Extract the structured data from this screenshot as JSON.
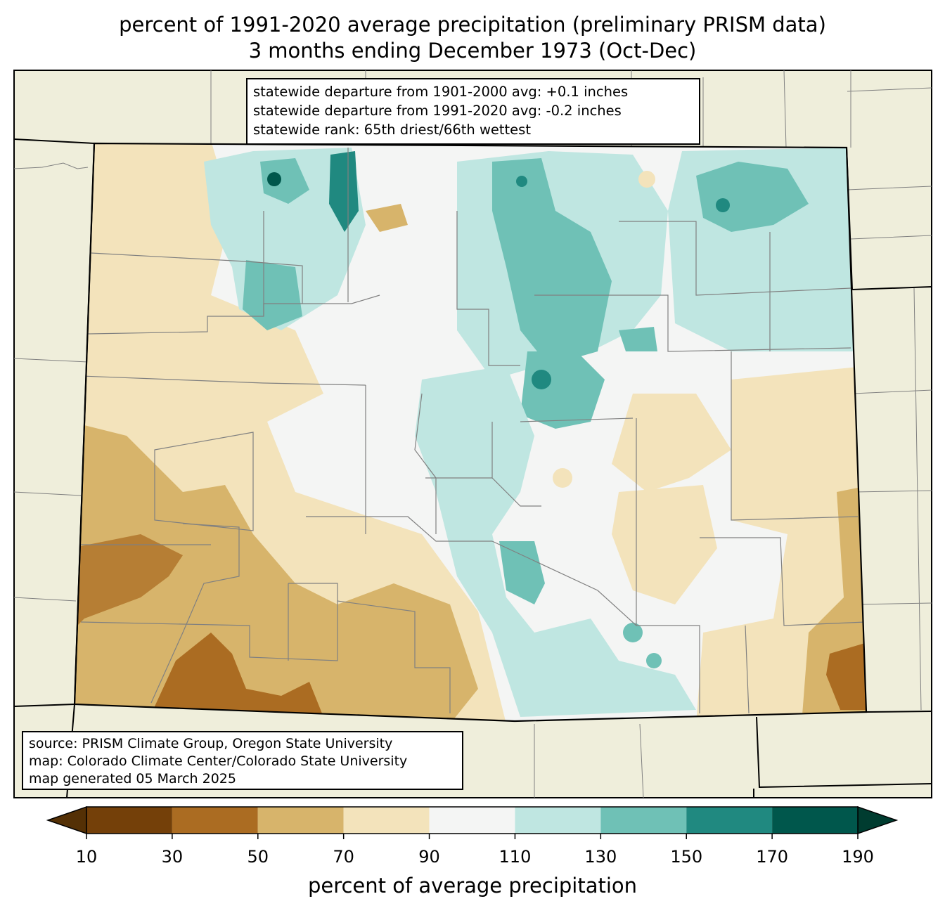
{
  "title_line1": "percent of 1991-2020 average precipitation (preliminary PRISM data)",
  "title_line2": "3 months ending December 1973 (Oct-Dec)",
  "stats": [
    "statewide departure from 1901-2000 avg: +0.1 inches",
    "statewide departure from 1991-2020 avg: -0.2 inches",
    "statewide rank: 65th driest/66th wettest"
  ],
  "credits": [
    "source: PRISM Climate Group, Oregon State University",
    "map: Colorado Climate Center/Colorado State University",
    "map generated 05 March 2025"
  ],
  "colorbar": {
    "label": "percent of average precipitation",
    "ticks": [
      "10",
      "30",
      "50",
      "70",
      "90",
      "110",
      "130",
      "150",
      "170",
      "190"
    ],
    "under_color": "#543005",
    "over_color": "#003c30",
    "bins": [
      {
        "range": [
          10,
          30
        ],
        "color": "#744009"
      },
      {
        "range": [
          30,
          50
        ],
        "color": "#ab6c22"
      },
      {
        "range": [
          50,
          70
        ],
        "color": "#d7b46b"
      },
      {
        "range": [
          70,
          90
        ],
        "color": "#f3e3bb"
      },
      {
        "range": [
          90,
          110
        ],
        "color": "#f4f5f4"
      },
      {
        "range": [
          110,
          130
        ],
        "color": "#bfe6e1"
      },
      {
        "range": [
          130,
          150
        ],
        "color": "#6fc1b6"
      },
      {
        "range": [
          150,
          170
        ],
        "color": "#208980"
      },
      {
        "range": [
          170,
          190
        ],
        "color": "#00574c"
      }
    ]
  },
  "map_colors": {
    "land_outside": "#efeedb",
    "county_lines": "#808080",
    "state_border": "#000000"
  }
}
